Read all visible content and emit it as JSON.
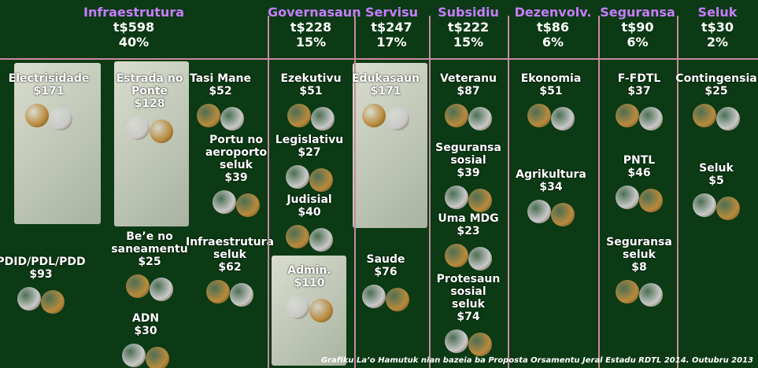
{
  "columns": [
    {
      "title": "Infraestrutura",
      "amount": "t$598",
      "percent": "40%",
      "items": [
        {
          "label": "Electrisidade",
          "amount": "$171"
        },
        {
          "label": "Estrada no\nPonte",
          "amount": "$128"
        },
        {
          "label": "Tasi Mane",
          "amount": "$52"
        },
        {
          "label": "Portu no\naeroporto\nseluk",
          "amount": "$39"
        },
        {
          "label": "Infraestrutura\nseluk",
          "amount": "$62"
        },
        {
          "label": "PDID/PDL/PDD",
          "amount": "$93"
        },
        {
          "label": "Be’e no\nsaneamentu",
          "amount": "$25"
        },
        {
          "label": "ADN",
          "amount": "$30"
        }
      ]
    },
    {
      "title": "Governasaun",
      "amount": "t$228",
      "percent": "15%",
      "items": [
        {
          "label": "Ezekutivu",
          "amount": "$51"
        },
        {
          "label": "Legislativu",
          "amount": "$27"
        },
        {
          "label": "Judisial",
          "amount": "$40"
        },
        {
          "label": "Admin.",
          "amount": "$110"
        }
      ]
    },
    {
      "title": "Servisu",
      "amount": "t$247",
      "percent": "17%",
      "items": [
        {
          "label": "Edukasaun",
          "amount": "$171"
        },
        {
          "label": "Saude",
          "amount": "$76"
        }
      ]
    },
    {
      "title": "Subsidiu",
      "amount": "t$222",
      "percent": "15%",
      "items": [
        {
          "label": "Veteranu",
          "amount": "$87"
        },
        {
          "label": "Seguransa\nsosial",
          "amount": "$39"
        },
        {
          "label": "Uma MDG",
          "amount": "$23"
        },
        {
          "label": "Protesaun\nsosial\nseluk",
          "amount": "$74"
        }
      ]
    },
    {
      "title": "Dezenvolv.",
      "amount": "t$86",
      "percent": "6%",
      "items": [
        {
          "label": "Ekonomia",
          "amount": "$51"
        },
        {
          "label": "Agrikultura",
          "amount": "$34"
        }
      ]
    },
    {
      "title": "Seguransa",
      "amount": "t$90",
      "percent": "6%",
      "items": [
        {
          "label": "F-FDTL",
          "amount": "$37"
        },
        {
          "label": "PNTL",
          "amount": "$46"
        },
        {
          "label": "Seguransa\nseluk",
          "amount": "$8"
        }
      ]
    },
    {
      "title": "Seluk",
      "amount": "t$30",
      "percent": "2%",
      "items": [
        {
          "label": "Contingensia",
          "amount": "$25"
        },
        {
          "label": "Seluk",
          "amount": "$5"
        }
      ]
    }
  ],
  "footnote": "Grafiku La’o Hamutuk nian bazeia ba Proposta Orsamentu Jeral Estadu RDTL  2014.  Outubru 2013"
}
